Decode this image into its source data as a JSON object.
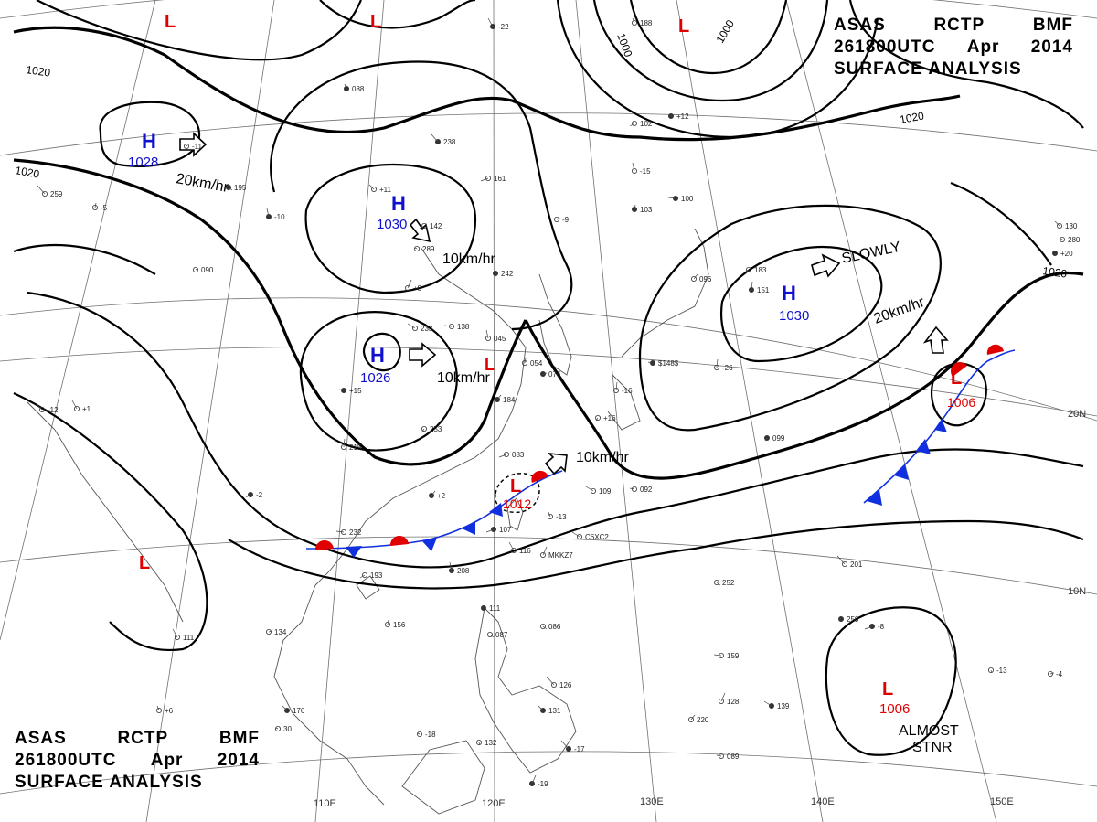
{
  "header": {
    "agency": "ASAS",
    "station": "RCTP",
    "code": "BMF",
    "datetime": "261800UTC",
    "month": "Apr",
    "year": "2014",
    "title": "SURFACE ANALYSIS"
  },
  "isobar_labels": {
    "i1020": "1020",
    "i1000": "1000"
  },
  "longitude_labels": {
    "e110": "110E",
    "e120": "120E",
    "e130": "130E",
    "e140": "140E",
    "e150": "150E"
  },
  "latitude_labels": {
    "n20": "20N",
    "n10": "10N"
  },
  "pressure_systems": [
    {
      "symbol": "H",
      "pressure": "1028"
    },
    {
      "symbol": "H",
      "pressure": "1030"
    },
    {
      "symbol": "H",
      "pressure": "1026"
    },
    {
      "symbol": "H",
      "pressure": "1030"
    },
    {
      "symbol": "L",
      "pressure": "1012"
    },
    {
      "symbol": "L",
      "pressure": "1006"
    },
    {
      "symbol": "L",
      "pressure": "1006"
    },
    {
      "symbol": "L",
      "pressure": ""
    },
    {
      "symbol": "L",
      "pressure": ""
    },
    {
      "symbol": "L",
      "pressure": ""
    },
    {
      "symbol": "L",
      "pressure": ""
    },
    {
      "symbol": "L",
      "pressure": ""
    }
  ],
  "motion_labels": {
    "m1": "20km/hr",
    "m2": "10km/hr",
    "m3": "10km/hr",
    "m4": "10km/hr",
    "m5": "SLOWLY",
    "m6": "20km/hr",
    "almost": "ALMOST",
    "stnr": "STNR"
  },
  "colors": {
    "high": "#1010d0",
    "low": "#e00000",
    "cold_front": "#1030e0",
    "warm_front": "#e00000",
    "isobar": "#000000",
    "coastline": "#444444",
    "grid": "#666666"
  },
  "station_samples": [
    "238",
    "+11",
    "289",
    "242",
    "+8",
    "233",
    "+15",
    "253",
    "215",
    "+2",
    "232",
    "193",
    "208",
    "156",
    "134",
    "107",
    "116",
    "-13",
    "111",
    "087",
    "126",
    "131",
    "-18",
    "132",
    "-19",
    "109",
    "092",
    "099",
    "-26",
    "096",
    "100",
    "102",
    "-15",
    "103",
    "-9",
    "161",
    "-22",
    "188",
    "-11",
    "195",
    "259",
    "-12",
    "250",
    "-13",
    "128",
    "139",
    "089",
    "183",
    "151",
    "220",
    "159",
    "-2",
    "045",
    "054",
    "076",
    "083",
    "111",
    "088",
    "090",
    "086",
    "-17",
    "130",
    "280",
    "+20",
    "MKKZ7",
    "C6XC2",
    "$148$",
    "+16",
    "-16",
    "184",
    "138",
    "142",
    "-10",
    "-5",
    "-4",
    "-8",
    "+1",
    "+6",
    "+12",
    "252",
    "201",
    "176",
    "30"
  ]
}
